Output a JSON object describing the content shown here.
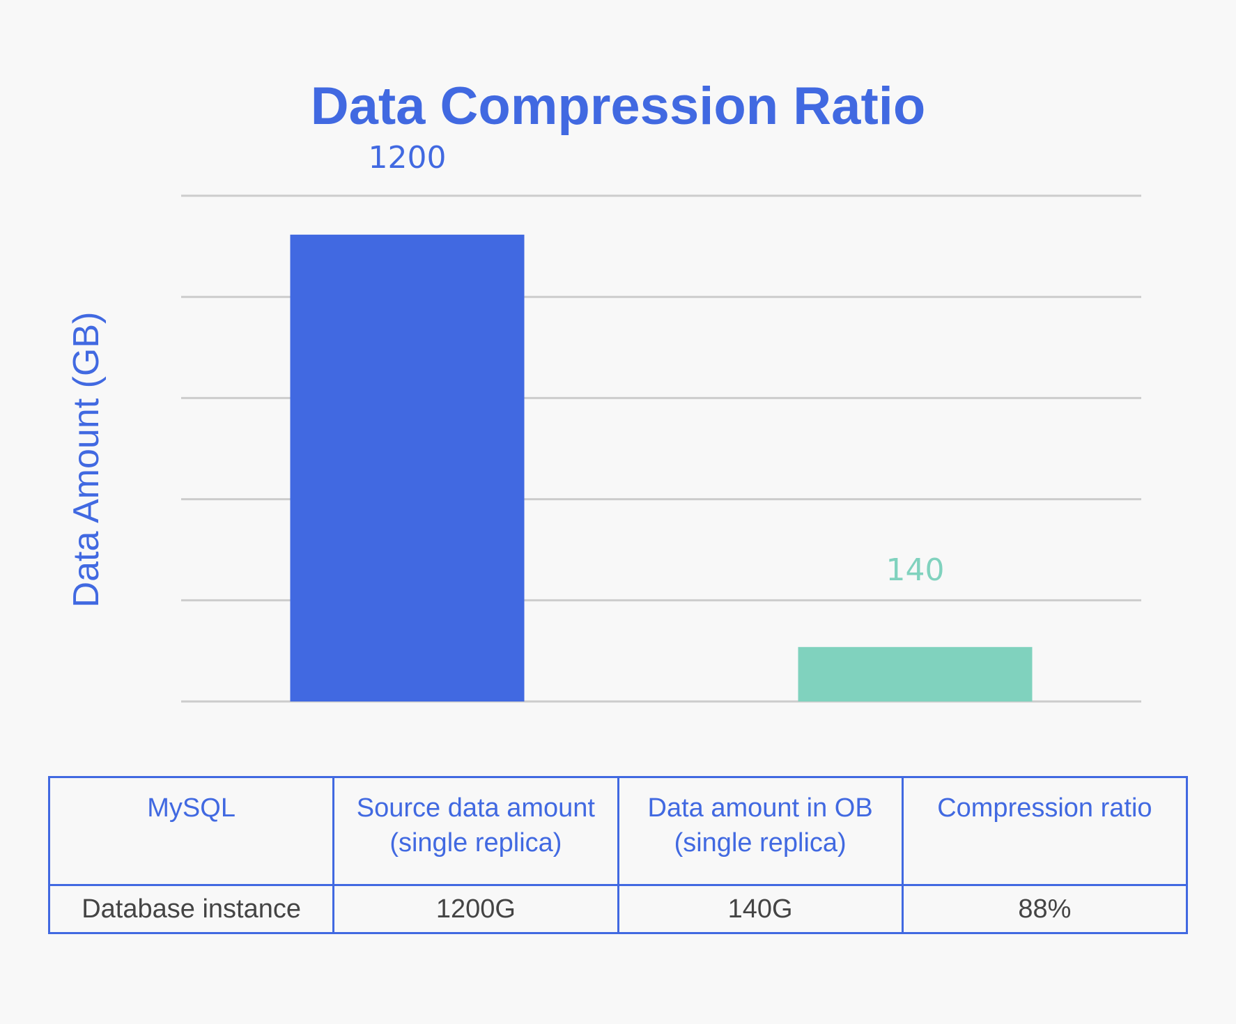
{
  "chart_data": {
    "type": "bar",
    "title": "Data Compression Ratio",
    "xlabel": "",
    "ylabel": "Data Amount (GB)",
    "categories": [
      "",
      ""
    ],
    "values": [
      1200,
      140
    ],
    "data_labels": [
      "1200",
      "140"
    ],
    "colors": [
      "#4169e1",
      "#80d2be"
    ],
    "label_colors": [
      "#4169e1",
      "#80d2be"
    ],
    "grid": true,
    "gridline_count": 6,
    "ylim": [
      0,
      1300
    ]
  },
  "table": {
    "headers": [
      "MySQL",
      "Source data amount (single replica)",
      "Data amount in OB (single replica)",
      "Compression ratio"
    ],
    "rows": [
      [
        "Database instance",
        "1200G",
        "140G",
        "88%"
      ]
    ]
  },
  "colors": {
    "accent": "#4169e1",
    "teal": "#80d2be",
    "grid": "#cccccc"
  }
}
